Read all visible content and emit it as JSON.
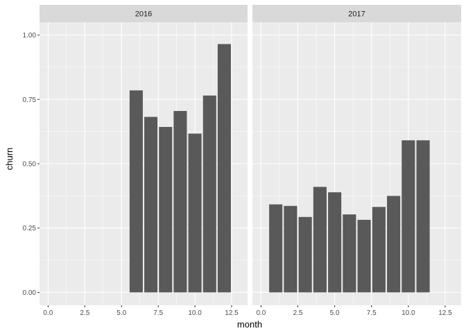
{
  "chart_data": {
    "type": "bar",
    "xlabel": "month",
    "ylabel": "churn",
    "xlim": [
      0,
      13
    ],
    "ylim": [
      0,
      1.0
    ],
    "x_ticks": [
      {
        "value": 0,
        "label": "0.0"
      },
      {
        "value": 2.5,
        "label": "2.5"
      },
      {
        "value": 5,
        "label": "5.0"
      },
      {
        "value": 7.5,
        "label": "7.5"
      },
      {
        "value": 10,
        "label": "10.0"
      },
      {
        "value": 12.5,
        "label": "12.5"
      }
    ],
    "y_ticks": [
      {
        "value": 0,
        "label": "0.00"
      },
      {
        "value": 0.25,
        "label": "0.25"
      },
      {
        "value": 0.5,
        "label": "0.50"
      },
      {
        "value": 0.75,
        "label": "0.75"
      },
      {
        "value": 1.0,
        "label": "1.00"
      }
    ],
    "grid": true,
    "panels": [
      {
        "title": "2016",
        "x": [
          6,
          7,
          8,
          9,
          10,
          11,
          12
        ],
        "values": [
          0.785,
          0.682,
          0.643,
          0.705,
          0.617,
          0.765,
          0.965
        ]
      },
      {
        "title": "2017",
        "x": [
          1,
          2,
          3,
          4,
          5,
          6,
          7,
          8,
          9,
          10,
          11
        ],
        "values": [
          0.342,
          0.336,
          0.293,
          0.41,
          0.389,
          0.303,
          0.282,
          0.332,
          0.375,
          0.591,
          0.591
        ]
      }
    ],
    "colors": {
      "background": "#ffffff",
      "panel": "#ebebeb",
      "strip": "#d9d9d9",
      "bar": "#595959",
      "grid": "#ffffff",
      "tick": "#333333"
    }
  }
}
